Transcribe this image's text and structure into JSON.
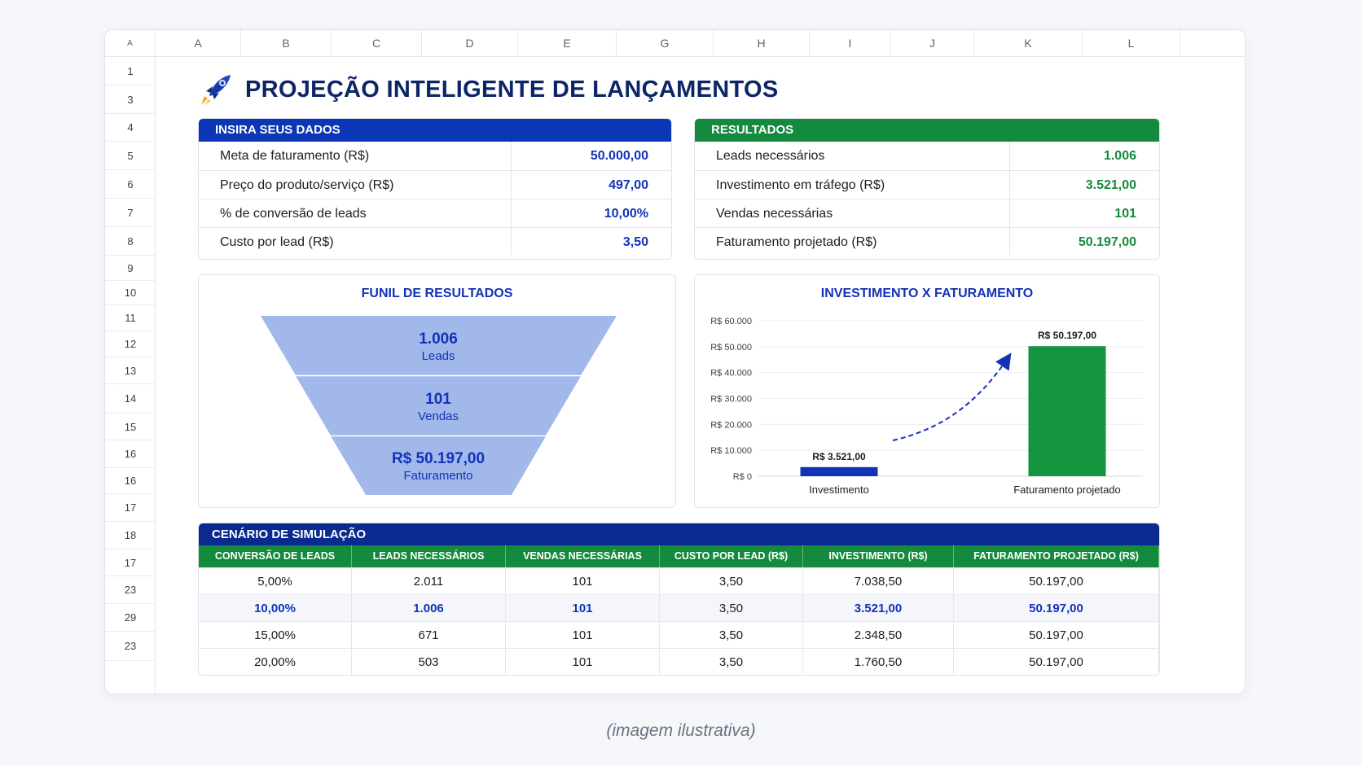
{
  "columns": [
    "A",
    "A",
    "B",
    "C",
    "D",
    "E",
    "G",
    "H",
    "I",
    "J",
    "K",
    "L"
  ],
  "rows": [
    "1",
    "3",
    "4",
    "5",
    "6",
    "7",
    "8",
    "9",
    "10",
    "11",
    "12",
    "13",
    "14",
    "15",
    "16",
    "16",
    "17",
    "18",
    "17",
    "23",
    "29",
    "23"
  ],
  "title": "PROJEÇÃO INTELIGENTE DE LANÇAMENTOS",
  "title_icon": "rocket-icon",
  "inputs": {
    "header": "INSIRA SEUS DADOS",
    "items": [
      {
        "label": "Meta de faturamento (R$)",
        "value": "50.000,00"
      },
      {
        "label": "Preço do produto/serviço (R$)",
        "value": "497,00"
      },
      {
        "label": "% de conversão de leads",
        "value": "10,00%"
      },
      {
        "label": "Custo por lead (R$)",
        "value": "3,50"
      }
    ]
  },
  "results": {
    "header": "RESULTADOS",
    "items": [
      {
        "label": "Leads necessários",
        "value": "1.006"
      },
      {
        "label": "Investimento em tráfego (R$)",
        "value": "3.521,00"
      },
      {
        "label": "Vendas necessárias",
        "value": "101"
      },
      {
        "label": "Faturamento projetado (R$)",
        "value": "50.197,00"
      }
    ]
  },
  "funnel": {
    "title": "FUNIL DE RESULTADOS",
    "stages": [
      {
        "value": "1.006",
        "label": "Leads"
      },
      {
        "value": "101",
        "label": "Vendas"
      },
      {
        "value": "R$ 50.197,00",
        "label": "Faturamento"
      }
    ]
  },
  "chart_data": {
    "type": "bar",
    "title": "INVESTIMENTO X FATURAMENTO",
    "categories": [
      "Investimento",
      "Faturamento projetado"
    ],
    "values": [
      3521,
      50197
    ],
    "data_labels": [
      "R$ 3.521,00",
      "R$ 50.197,00"
    ],
    "colors": [
      "#1232b8",
      "#14943f"
    ],
    "ylim": [
      0,
      60000
    ],
    "yticks": [
      0,
      10000,
      20000,
      30000,
      40000,
      50000,
      60000
    ],
    "ytick_labels": [
      "R$ 0",
      "R$ 10.000",
      "R$ 20.000",
      "R$ 30.000",
      "R$ 40.000",
      "R$ 50.000",
      "R$ 60.000"
    ],
    "grid": true,
    "annotation": "dashed-arrow"
  },
  "simulation": {
    "header": "CENÁRIO DE SIMULAÇÃO",
    "columns": [
      "CONVERSÃO DE LEADS",
      "LEADS NECESSÁRIOS",
      "VENDAS NECESSÁRIAS",
      "CUSTO POR LEAD (R$)",
      "INVESTIMENTO (R$)",
      "FATURAMENTO PROJETADO (R$)"
    ],
    "rows": [
      [
        "5,00%",
        "2.011",
        "101",
        "3,50",
        "7.038,50",
        "50.197,00"
      ],
      [
        "10,00%",
        "1.006",
        "101",
        "3,50",
        "3.521,00",
        "50.197,00"
      ],
      [
        "15,00%",
        "671",
        "101",
        "3,50",
        "2.348,50",
        "50.197,00"
      ],
      [
        "20,00%",
        "503",
        "101",
        "3,50",
        "1.760,50",
        "50.197,00"
      ]
    ],
    "highlight_row": 1
  },
  "caption": "(imagem ilustrativa)",
  "colors": {
    "navy": "#0b2566",
    "blue": "#1232b8",
    "green": "#138a3d",
    "funnel": "#a3b8ea"
  }
}
